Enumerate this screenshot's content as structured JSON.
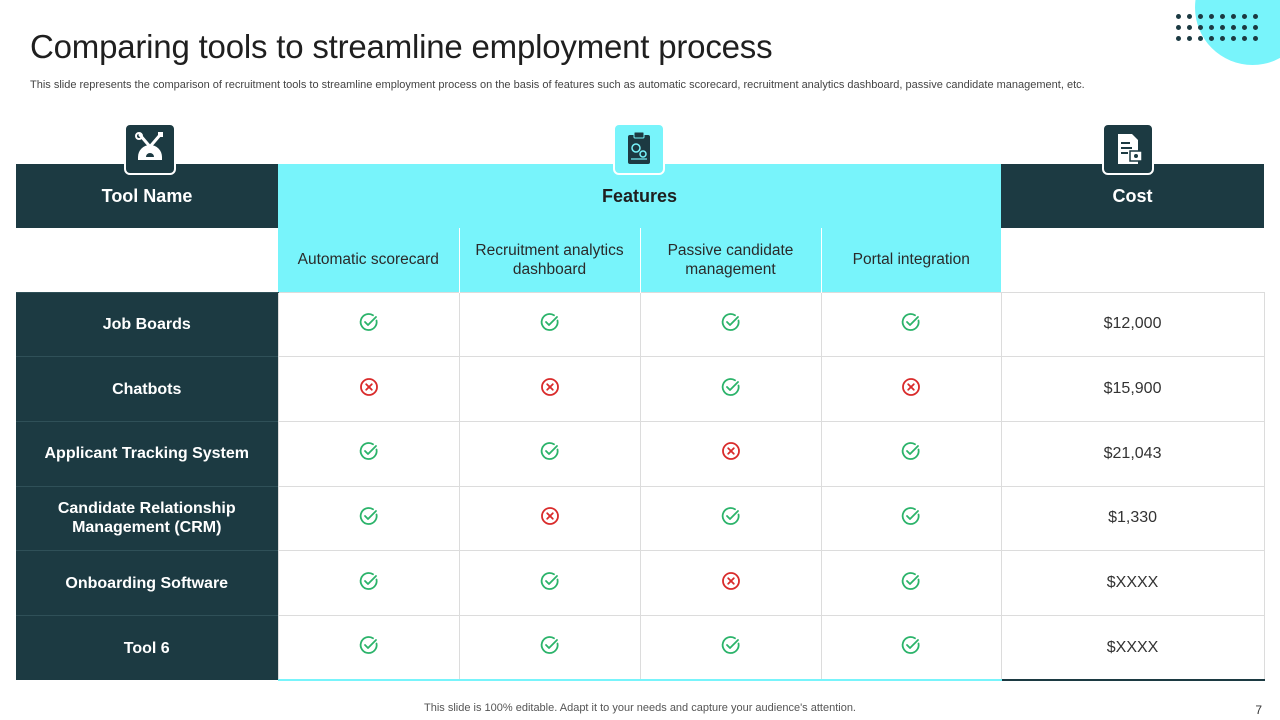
{
  "slide": {
    "title": "Comparing tools to streamline employment process",
    "subtitle": "This slide represents the comparison of recruitment tools to streamline employment process on the basis of features such as automatic scorecard, recruitment analytics dashboard, passive candidate management, etc.",
    "footer": "This slide is 100% editable. Adapt it to your needs and capture your audience's attention.",
    "page_number": "7"
  },
  "icons": {
    "tool_header": "tools-gear-icon",
    "features_header": "clipboard-settings-icon",
    "cost_header": "invoice-icon",
    "check": "check-circle-icon",
    "cross": "cross-circle-icon"
  },
  "colors": {
    "dark_teal": "#1c3a42",
    "cyan": "#78f4fb",
    "check_green": "#2bb36a",
    "cross_red": "#d92b2b"
  },
  "table": {
    "headers": {
      "tool": "Tool Name",
      "features": "Features",
      "cost": "Cost"
    },
    "features": [
      "Automatic scorecard",
      "Recruitment analytics dashboard",
      "Passive candidate management",
      "Portal integration"
    ],
    "rows": [
      {
        "tool": "Job Boards",
        "features": [
          true,
          true,
          true,
          true
        ],
        "cost": "$12,000"
      },
      {
        "tool": "Chatbots",
        "features": [
          false,
          false,
          true,
          false
        ],
        "cost": "$15,900"
      },
      {
        "tool": "Applicant Tracking System",
        "features": [
          true,
          true,
          false,
          true
        ],
        "cost": "$21,043"
      },
      {
        "tool": "Candidate Relationship Management (CRM)",
        "features": [
          true,
          false,
          true,
          true
        ],
        "cost": "$1,330"
      },
      {
        "tool": "Onboarding Software",
        "features": [
          true,
          true,
          false,
          true
        ],
        "cost": "$XXXX"
      },
      {
        "tool": "Tool 6",
        "features": [
          true,
          true,
          true,
          true
        ],
        "cost": "$XXXX"
      }
    ]
  }
}
